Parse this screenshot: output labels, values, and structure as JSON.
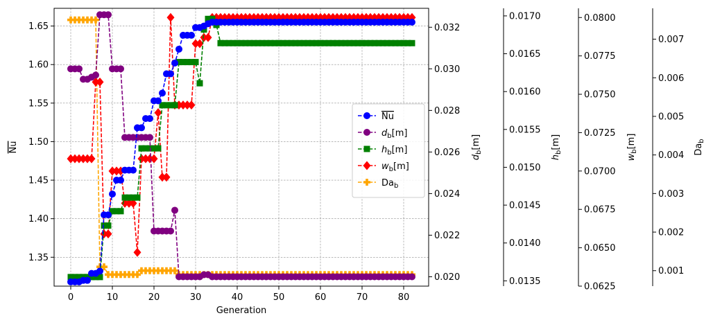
{
  "chart_data": {
    "type": "line",
    "xlabel": "Generation",
    "ylabel": "Nu",
    "xlim": [
      -4,
      86
    ],
    "xticks": [
      "0",
      "10",
      "20",
      "30",
      "40",
      "50",
      "60",
      "70",
      "80"
    ],
    "grid": true,
    "legend_position": "center-right",
    "axes": {
      "Nu": {
        "label": "Nu",
        "lim": [
          1.3125,
          1.673
        ],
        "ticks": [
          "1.35",
          "1.40",
          "1.45",
          "1.50",
          "1.55",
          "1.60",
          "1.65"
        ]
      },
      "d_b": {
        "label": "d_b[m]",
        "lim": [
          0.01955,
          0.03291
        ],
        "ticks": [
          "0.020",
          "0.022",
          "0.024",
          "0.026",
          "0.028",
          "0.030",
          "0.032"
        ]
      },
      "h_b": {
        "label": "h_b[m]",
        "lim": [
          0.01343,
          0.0171
        ],
        "ticks": [
          "0.0135",
          "0.0140",
          "0.0145",
          "0.0150",
          "0.0155",
          "0.0160",
          "0.0165",
          "0.0170"
        ]
      },
      "w_b": {
        "label": "w_b[m]",
        "lim": [
          0.0625,
          0.0806
        ],
        "ticks": [
          "0.0625",
          "0.0650",
          "0.0675",
          "0.0700",
          "0.0725",
          "0.0750",
          "0.0775",
          "0.0800"
        ]
      },
      "Da_b": {
        "label": "Da_b",
        "lim": [
          0.0006,
          0.0078
        ],
        "ticks": [
          "0.001",
          "0.002",
          "0.003",
          "0.004",
          "0.005",
          "0.006",
          "0.007"
        ]
      }
    },
    "series": [
      {
        "name": "Nu",
        "axis": "Nu",
        "color": "#0000ff",
        "marker": "circle",
        "values": [
          1.318,
          1.318,
          1.318,
          1.32,
          1.32,
          1.329,
          1.329,
          1.332,
          1.405,
          1.405,
          1.432,
          1.45,
          1.45,
          1.463,
          1.463,
          1.463,
          1.518,
          1.518,
          1.53,
          1.53,
          1.553,
          1.553,
          1.563,
          1.588,
          1.588,
          1.602,
          1.62,
          1.638,
          1.638,
          1.638,
          1.648,
          1.648,
          1.65,
          1.653,
          1.655,
          1.655,
          1.655,
          1.655,
          1.655,
          1.655,
          1.655,
          1.655,
          1.655,
          1.655,
          1.655,
          1.655,
          1.655,
          1.655,
          1.655,
          1.655,
          1.655,
          1.655,
          1.655,
          1.655,
          1.655,
          1.655,
          1.655,
          1.655,
          1.655,
          1.655,
          1.655,
          1.655,
          1.655,
          1.655,
          1.655,
          1.655,
          1.655,
          1.655,
          1.655,
          1.655,
          1.655,
          1.655,
          1.655,
          1.655,
          1.655,
          1.655,
          1.655,
          1.655,
          1.655,
          1.655,
          1.655,
          1.655,
          1.655
        ]
      },
      {
        "name": "d_b[m]",
        "axis": "d_b",
        "color": "#800080",
        "marker": "circle",
        "values": [
          0.03,
          0.03,
          0.03,
          0.0295,
          0.0295,
          0.0296,
          0.0297,
          0.0326,
          0.0326,
          0.0326,
          0.03,
          0.03,
          0.03,
          0.0267,
          0.0267,
          0.0267,
          0.0267,
          0.0267,
          0.0267,
          0.0267,
          0.0222,
          0.0222,
          0.0222,
          0.0222,
          0.0222,
          0.0232,
          0.02,
          0.02,
          0.02,
          0.02,
          0.02,
          0.02,
          0.0201,
          0.0201,
          0.02,
          0.02,
          0.02,
          0.02,
          0.02,
          0.02,
          0.02,
          0.02,
          0.02,
          0.02,
          0.02,
          0.02,
          0.02,
          0.02,
          0.02,
          0.02,
          0.02,
          0.02,
          0.02,
          0.02,
          0.02,
          0.02,
          0.02,
          0.02,
          0.02,
          0.02,
          0.02,
          0.02,
          0.02,
          0.02,
          0.02,
          0.02,
          0.02,
          0.02,
          0.02,
          0.02,
          0.02,
          0.02,
          0.02,
          0.02,
          0.02,
          0.02,
          0.02,
          0.02,
          0.02,
          0.02,
          0.02,
          0.02,
          0.02
        ]
      },
      {
        "name": "h_b[m]",
        "axis": "h_b",
        "color": "#008000",
        "marker": "square",
        "values": [
          0.01355,
          0.01355,
          0.01355,
          0.01355,
          0.01355,
          0.01355,
          0.01355,
          0.01355,
          0.01423,
          0.01423,
          0.01442,
          0.01442,
          0.01442,
          0.0146,
          0.0146,
          0.0146,
          0.0146,
          0.01525,
          0.01525,
          0.01525,
          0.01525,
          0.01525,
          0.01582,
          0.01582,
          0.01582,
          0.01582,
          0.01639,
          0.01639,
          0.01639,
          0.01639,
          0.01639,
          0.01611,
          0.01682,
          0.01696,
          0.01696,
          0.01688,
          0.01664,
          0.01664,
          0.01664,
          0.01664,
          0.01664,
          0.01664,
          0.01664,
          0.01664,
          0.01664,
          0.01664,
          0.01664,
          0.01664,
          0.01664,
          0.01664,
          0.01664,
          0.01664,
          0.01664,
          0.01664,
          0.01664,
          0.01664,
          0.01664,
          0.01664,
          0.01664,
          0.01664,
          0.01664,
          0.01664,
          0.01664,
          0.01664,
          0.01664,
          0.01664,
          0.01664,
          0.01664,
          0.01664,
          0.01664,
          0.01664,
          0.01664,
          0.01664,
          0.01664,
          0.01664,
          0.01664,
          0.01664,
          0.01664,
          0.01664,
          0.01664,
          0.01664,
          0.01664,
          0.01664
        ]
      },
      {
        "name": "w_b[m]",
        "axis": "w_b",
        "color": "#ff0000",
        "marker": "diamond",
        "values": [
          0.0708,
          0.0708,
          0.0708,
          0.0708,
          0.0708,
          0.0708,
          0.0758,
          0.0758,
          0.0659,
          0.0659,
          0.07,
          0.07,
          0.07,
          0.0679,
          0.0679,
          0.0679,
          0.0647,
          0.0708,
          0.0708,
          0.0708,
          0.0708,
          0.0738,
          0.0696,
          0.0696,
          0.08,
          0.0743,
          0.0743,
          0.0743,
          0.0743,
          0.0743,
          0.0783,
          0.0783,
          0.0787,
          0.0787,
          0.08,
          0.08,
          0.08,
          0.08,
          0.08,
          0.08,
          0.08,
          0.08,
          0.08,
          0.08,
          0.08,
          0.08,
          0.08,
          0.08,
          0.08,
          0.08,
          0.08,
          0.08,
          0.08,
          0.08,
          0.08,
          0.08,
          0.08,
          0.08,
          0.08,
          0.08,
          0.08,
          0.08,
          0.08,
          0.08,
          0.08,
          0.08,
          0.08,
          0.08,
          0.08,
          0.08,
          0.08,
          0.08,
          0.08,
          0.08,
          0.08,
          0.08,
          0.08,
          0.08,
          0.08,
          0.08,
          0.08,
          0.08,
          0.08
        ]
      },
      {
        "name": "Da_b",
        "axis": "Da_b",
        "color": "#ffa500",
        "marker": "plus",
        "values": [
          0.0075,
          0.0075,
          0.0075,
          0.0075,
          0.0075,
          0.0075,
          0.0075,
          0.0011,
          0.0011,
          0.0009,
          0.0009,
          0.0009,
          0.0009,
          0.0009,
          0.0009,
          0.0009,
          0.0009,
          0.001,
          0.001,
          0.001,
          0.001,
          0.001,
          0.001,
          0.001,
          0.001,
          0.001,
          0.0009,
          0.0009,
          0.0009,
          0.0009,
          0.0009,
          0.0009,
          0.0009,
          0.0009,
          0.0009,
          0.0009,
          0.0009,
          0.0009,
          0.0009,
          0.0009,
          0.0009,
          0.0009,
          0.0009,
          0.0009,
          0.0009,
          0.0009,
          0.0009,
          0.0009,
          0.0009,
          0.0009,
          0.0009,
          0.0009,
          0.0009,
          0.0009,
          0.0009,
          0.0009,
          0.0009,
          0.0009,
          0.0009,
          0.0009,
          0.0009,
          0.0009,
          0.0009,
          0.0009,
          0.0009,
          0.0009,
          0.0009,
          0.0009,
          0.0009,
          0.0009,
          0.0009,
          0.0009,
          0.0009,
          0.0009,
          0.0009,
          0.0009,
          0.0009,
          0.0009,
          0.0009,
          0.0009,
          0.0009,
          0.0009,
          0.0009
        ]
      }
    ]
  }
}
